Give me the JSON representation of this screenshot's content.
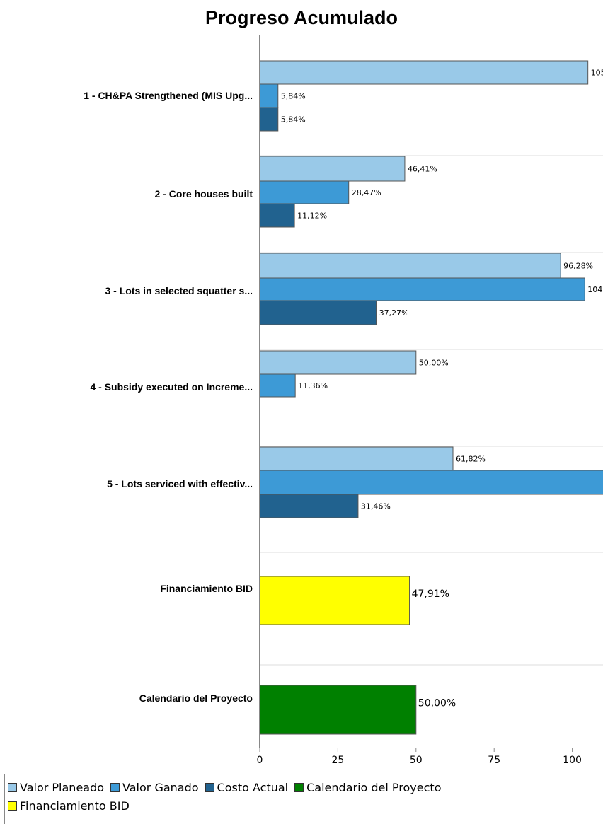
{
  "chart_data": {
    "type": "bar",
    "orientation": "horizontal",
    "title": "Progreso Acumulado",
    "xlim": [
      0,
      110
    ],
    "xticks": [
      "0",
      "25",
      "50",
      "75",
      "100"
    ],
    "grid": true,
    "legend_position": "bottom",
    "categories": [
      "1 - CH&PA Strengthened (MIS Upg...",
      "2 - Core houses built",
      "3 - Lots in selected squatter s...",
      "4 - Subsidy executed on Increme...",
      "5 - Lots serviced with effectiv...",
      "Financiamiento BID",
      "Calendario del Proyecto"
    ],
    "series": [
      {
        "name": "Valor Planeado",
        "color": "#99c9e8",
        "values": [
          105,
          46.41,
          96.28,
          50.0,
          61.82,
          null,
          null
        ],
        "labels": [
          "105",
          "46,41%",
          "96,28%",
          "50,00%",
          "61,82%",
          "",
          ""
        ]
      },
      {
        "name": "Valor Ganado",
        "color": "#3d9ad6",
        "values": [
          5.84,
          28.47,
          104,
          11.36,
          110,
          null,
          null
        ],
        "labels": [
          "5,84%",
          "28,47%",
          "104",
          "11,36%",
          "",
          "",
          ""
        ]
      },
      {
        "name": "Costo Actual",
        "color": "#21628f",
        "values": [
          5.84,
          11.12,
          37.27,
          null,
          31.46,
          null,
          null
        ],
        "labels": [
          "5,84%",
          "11,12%",
          "37,27%",
          "",
          "31,46%",
          "",
          ""
        ]
      },
      {
        "name": "Financiamiento BID",
        "color": "#ffff00",
        "values": [
          null,
          null,
          null,
          null,
          null,
          47.91,
          null
        ],
        "labels": [
          "",
          "",
          "",
          "",
          "",
          "47,91%",
          ""
        ]
      },
      {
        "name": "Calendario del Proyecto",
        "color": "#008000",
        "values": [
          null,
          null,
          null,
          null,
          null,
          null,
          50.0
        ],
        "labels": [
          "",
          "",
          "",
          "",
          "",
          "",
          "50,00%"
        ]
      }
    ]
  },
  "legend": {
    "items": [
      {
        "label": "Valor Planeado",
        "color": "#99c9e8"
      },
      {
        "label": "Valor Ganado",
        "color": "#3d9ad6"
      },
      {
        "label": "Costo Actual",
        "color": "#21628f"
      },
      {
        "label": "Calendario del Proyecto",
        "color": "#008000"
      },
      {
        "label": "Financiamiento BID",
        "color": "#ffff00"
      }
    ]
  }
}
